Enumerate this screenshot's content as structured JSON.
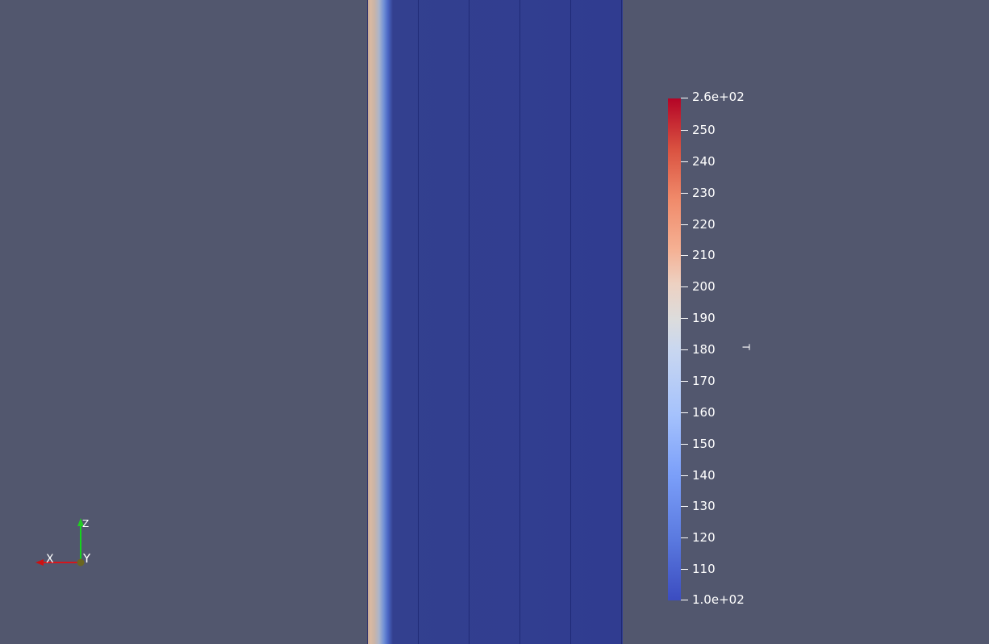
{
  "scalar_bar": {
    "title": "T",
    "top_label": "2.6e+02",
    "bottom_label": "1.0e+02",
    "ticks": [
      {
        "label": "250",
        "value": 250
      },
      {
        "label": "240",
        "value": 240
      },
      {
        "label": "230",
        "value": 230
      },
      {
        "label": "220",
        "value": 220
      },
      {
        "label": "210",
        "value": 210
      },
      {
        "label": "200",
        "value": 200
      },
      {
        "label": "190",
        "value": 190
      },
      {
        "label": "180",
        "value": 180
      },
      {
        "label": "170",
        "value": 170
      },
      {
        "label": "160",
        "value": 160
      },
      {
        "label": "150",
        "value": 150
      },
      {
        "label": "140",
        "value": 140
      },
      {
        "label": "130",
        "value": 130
      },
      {
        "label": "120",
        "value": 120
      },
      {
        "label": "110",
        "value": 110
      }
    ],
    "range": [
      100,
      260
    ],
    "colormap": "cool-to-warm",
    "colors": {
      "min": "#3b4cc0",
      "max": "#b40426"
    }
  },
  "orientation_axes": {
    "x_label": "X",
    "y_label": "Y",
    "z_label": "Z",
    "colors": {
      "x": "#ff0000",
      "y": "#ffff00",
      "z": "#00ff00"
    }
  },
  "colors": {
    "background": "#52576e",
    "mesh": "#303c90"
  }
}
